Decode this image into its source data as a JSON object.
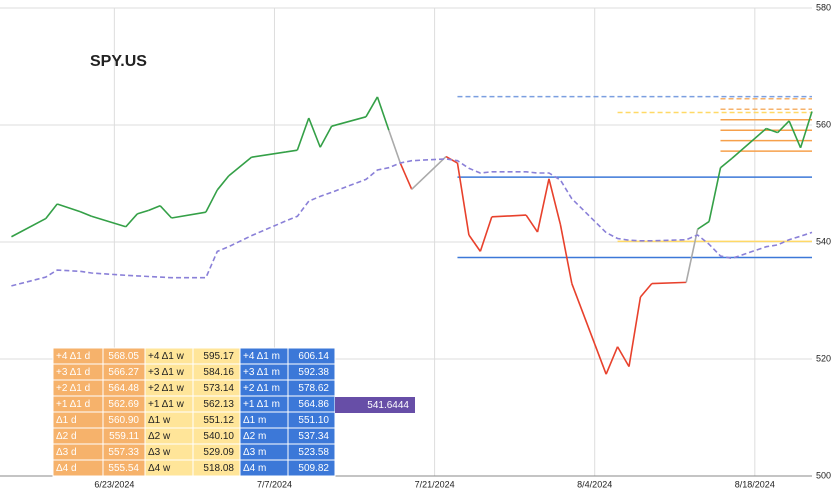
{
  "chart_data": {
    "type": "line",
    "title": "SPY.US",
    "x": [
      "6/14/2024",
      "6/17/2024",
      "6/18/2024",
      "6/20/2024",
      "6/21/2024",
      "6/24/2024",
      "6/25/2024",
      "6/26/2024",
      "6/27/2024",
      "6/28/2024",
      "7/1/2024",
      "7/2/2024",
      "7/3/2024",
      "7/5/2024",
      "7/8/2024",
      "7/9/2024",
      "7/10/2024",
      "7/11/2024",
      "7/12/2024",
      "7/15/2024",
      "7/16/2024",
      "7/17/2024",
      "7/18/2024",
      "7/19/2024",
      "7/22/2024",
      "7/23/2024",
      "7/24/2024",
      "7/25/2024",
      "7/26/2024",
      "7/29/2024",
      "7/30/2024",
      "7/31/2024",
      "8/1/2024",
      "8/2/2024",
      "8/5/2024",
      "8/6/2024",
      "8/7/2024",
      "8/8/2024",
      "8/9/2024",
      "8/12/2024",
      "8/13/2024",
      "8/14/2024",
      "8/15/2024",
      "8/16/2024",
      "8/19/2024",
      "8/20/2024",
      "8/21/2024",
      "8/22/2024",
      "8/23/2024"
    ],
    "series": [
      {
        "colors": [
          "#34a047",
          "#34a047",
          "#34a047",
          "#34a047",
          "#34a047",
          "#34a047",
          "#34a047",
          "#34a047",
          "#34a047",
          "#34a047",
          "#34a047",
          "#34a047",
          "#34a047",
          "#34a047",
          "#34a047",
          "#34a047",
          "#34a047",
          "#34a047",
          "#34a047",
          "#34a047",
          "#34a047",
          "#34a047",
          "#aaaaaa",
          "#e8412c",
          "#aaaaaa",
          "#e8412c",
          "#e8412c",
          "#e8412c",
          "#e8412c",
          "#e8412c",
          "#e8412c",
          "#e8412c",
          "#e8412c",
          "#e8412c",
          "#e8412c",
          "#e8412c",
          "#e8412c",
          "#e8412c",
          "#e8412c",
          "#e8412c",
          "#aaaaaa",
          "#34a047",
          "#34a047",
          "#34a047",
          "#34a047",
          "#34a047",
          "#34a047",
          "#34a047",
          "#34a047"
        ],
        "values": [
          540.9,
          544.0,
          546.5,
          545.2,
          544.4,
          542.6,
          544.8,
          545.4,
          546.2,
          544.1,
          545.1,
          548.9,
          551.3,
          554.5,
          555.4,
          555.7,
          561.2,
          556.2,
          559.8,
          561.4,
          564.8,
          559.1,
          553.5,
          549.0,
          554.6,
          553.5,
          541.2,
          538.4,
          544.3,
          544.6,
          541.7,
          550.8,
          543.0,
          532.9,
          517.4,
          522.1,
          518.7,
          530.6,
          532.9,
          533.1,
          542.2,
          543.5,
          552.7,
          554.3,
          559.4,
          558.7,
          560.7,
          556.1,
          562.3
        ]
      },
      {
        "color": "#8a80d8",
        "dashed": true,
        "values": [
          532.5,
          534.0,
          535.2,
          535.0,
          534.7,
          534.3,
          534.2,
          534.1,
          534.0,
          533.9,
          533.9,
          538.4,
          539.2,
          541.1,
          543.6,
          544.4,
          547.0,
          547.8,
          548.5,
          550.7,
          552.3,
          552.7,
          553.5,
          553.9,
          554.2,
          553.9,
          552.6,
          551.8,
          552.0,
          552.0,
          551.8,
          551.8,
          550.6,
          547.4,
          541.6,
          540.6,
          540.3,
          540.2,
          540.2,
          540.4,
          541.2,
          539.6,
          537.6,
          537.2,
          539.2,
          539.5,
          540.4,
          541.0,
          541.6444
        ]
      }
    ],
    "levels": [
      {
        "value": 564.86,
        "color": "#7b9fe0",
        "dashed": true,
        "start": "7/23/2024"
      },
      {
        "value": 551.1,
        "color": "#3c78d8",
        "dashed": false,
        "start": "7/23/2024"
      },
      {
        "value": 537.34,
        "color": "#3c78d8",
        "dashed": false,
        "start": "7/23/2024"
      },
      {
        "value": 562.13,
        "color": "#ffd966",
        "dashed": true,
        "start": "8/6/2024"
      },
      {
        "value": 540.1,
        "color": "#ffd966",
        "dashed": false,
        "start": "8/6/2024"
      },
      {
        "value": 564.48,
        "color": "#f6b26b",
        "dashed": true,
        "start": "8/15/2024"
      },
      {
        "value": 562.69,
        "color": "#f6b26b",
        "dashed": true,
        "start": "8/15/2024"
      },
      {
        "value": 560.9,
        "color": "#f6a04b",
        "dashed": false,
        "start": "8/15/2024"
      },
      {
        "value": 559.11,
        "color": "#f6a04b",
        "dashed": false,
        "start": "8/15/2024"
      },
      {
        "value": 557.33,
        "color": "#f6a04b",
        "dashed": false,
        "start": "8/15/2024"
      },
      {
        "value": 555.54,
        "color": "#f6a04b",
        "dashed": false,
        "start": "8/15/2024"
      }
    ],
    "xlim": [
      "6/13/2024",
      "8/23/2024"
    ],
    "xticks": [
      "6/23/2024",
      "7/7/2024",
      "7/21/2024",
      "8/4/2024",
      "8/18/2024"
    ],
    "ylim": [
      500,
      580
    ],
    "yticks": [
      500,
      520,
      540,
      560,
      580
    ],
    "grid": true
  },
  "table": {
    "rows": [
      [
        "+4 Δ1 d",
        "568.05",
        "+4 Δ1 w",
        "595.17",
        "+4 Δ1 m",
        "606.14"
      ],
      [
        "+3 Δ1 d",
        "566.27",
        "+3 Δ1 w",
        "584.16",
        "+3 Δ1 m",
        "592.38"
      ],
      [
        "+2 Δ1 d",
        "564.48",
        "+2 Δ1 w",
        "573.14",
        "+2 Δ1 m",
        "578.62"
      ],
      [
        "+1 Δ1 d",
        "562.69",
        "+1 Δ1 w",
        "562.13",
        "+1 Δ1 m",
        "564.86"
      ],
      [
        "Δ1 d",
        "560.90",
        "Δ1 w",
        "551.12",
        "Δ1 m",
        "551.10"
      ],
      [
        "Δ2 d",
        "559.11",
        "Δ2 w",
        "540.10",
        "Δ2 m",
        "537.34"
      ],
      [
        "Δ3 d",
        "557.33",
        "Δ3 w",
        "529.09",
        "Δ3 m",
        "523.58"
      ],
      [
        "Δ4 d",
        "555.54",
        "Δ4 w",
        "518.08",
        "Δ4 m",
        "509.82"
      ]
    ]
  }
}
